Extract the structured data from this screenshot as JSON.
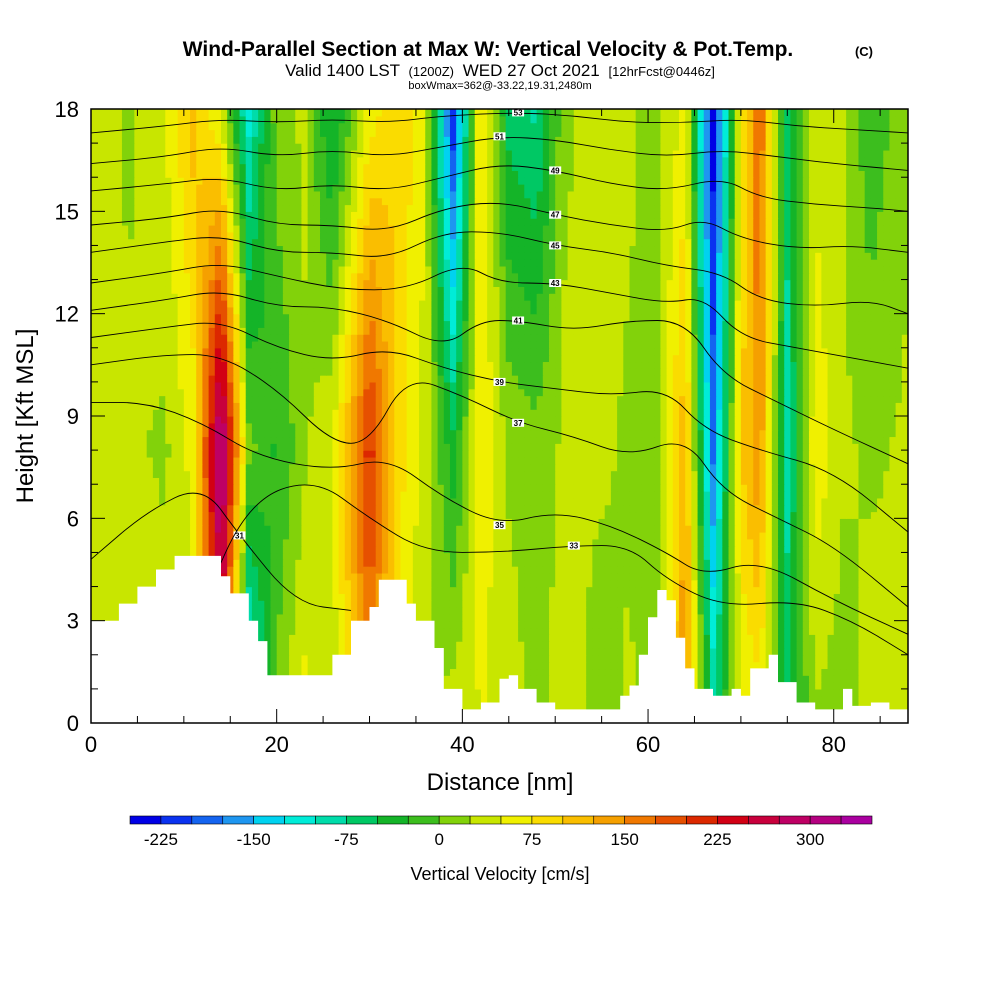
{
  "chart_data": {
    "type": "heatmap",
    "title": "Wind-Parallel Section at Max W: Vertical Velocity & Pot.Temp.",
    "copyright": "(C)",
    "subtitle_valid": "Valid 1400 LST",
    "subtitle_z": "(1200Z)",
    "subtitle_date": "WED 27 Oct 2021",
    "subtitle_fcst": "[12hrFcst@0446z]",
    "subtitle_box": "boxWmax=362@-33.22,19.31,2480m",
    "xlabel": "Distance [nm]",
    "ylabel": "Height [Kft MSL]",
    "xlim": [
      0,
      88
    ],
    "ylim": [
      0,
      18
    ],
    "x_ticks": [
      "0",
      "20",
      "40",
      "60",
      "80"
    ],
    "y_ticks": [
      "0",
      "3",
      "6",
      "9",
      "12",
      "15",
      "18"
    ],
    "colorbar": {
      "label": "Vertical Velocity [cm/s]",
      "min": -250,
      "max": 350,
      "step": 25,
      "tick_labels": [
        "-225",
        "-150",
        "-75",
        "0",
        "75",
        "150",
        "225",
        "300"
      ],
      "colors": [
        "#0000e6",
        "#0a32f0",
        "#1464f0",
        "#1e96f0",
        "#00d2f0",
        "#00ecd8",
        "#00dcaa",
        "#00c864",
        "#14b428",
        "#3cbe1e",
        "#82d20a",
        "#c8e600",
        "#f0f000",
        "#fadc00",
        "#fabe00",
        "#f5a000",
        "#f07800",
        "#e65000",
        "#dc2800",
        "#d20014",
        "#c8003c",
        "#be0064",
        "#b40080",
        "#aa00a0"
      ]
    },
    "terrain_kft": [
      [
        0,
        3.0
      ],
      [
        2,
        3.0
      ],
      [
        3,
        3.5
      ],
      [
        5,
        4.0
      ],
      [
        7,
        4.5
      ],
      [
        9,
        4.9
      ],
      [
        13,
        4.9
      ],
      [
        14,
        4.3
      ],
      [
        15,
        3.8
      ],
      [
        17,
        3.0
      ],
      [
        18,
        2.4
      ],
      [
        19,
        1.4
      ],
      [
        22,
        1.4
      ],
      [
        25,
        1.4
      ],
      [
        26,
        2.0
      ],
      [
        28,
        3.0
      ],
      [
        30,
        3.4
      ],
      [
        31,
        4.2
      ],
      [
        33,
        4.2
      ],
      [
        34,
        3.5
      ],
      [
        35,
        3.0
      ],
      [
        36,
        3.0
      ],
      [
        37,
        2.2
      ],
      [
        38,
        1.0
      ],
      [
        40,
        0.4
      ],
      [
        41,
        0.4
      ],
      [
        42,
        0.6
      ],
      [
        44,
        1.3
      ],
      [
        45,
        1.4
      ],
      [
        46,
        1.0
      ],
      [
        48,
        0.6
      ],
      [
        50,
        0.4
      ],
      [
        54,
        0.4
      ],
      [
        57,
        0.8
      ],
      [
        58,
        1.1
      ],
      [
        59,
        2.0
      ],
      [
        60,
        3.1
      ],
      [
        61,
        3.9
      ],
      [
        62,
        3.6
      ],
      [
        63,
        2.5
      ],
      [
        64,
        1.6
      ],
      [
        65,
        1.0
      ],
      [
        67,
        0.8
      ],
      [
        69,
        1.0
      ],
      [
        70,
        0.8
      ],
      [
        71,
        1.6
      ],
      [
        73,
        2.0
      ],
      [
        74,
        1.2
      ],
      [
        76,
        0.6
      ],
      [
        78,
        0.4
      ],
      [
        80,
        0.4
      ],
      [
        81,
        1.0
      ],
      [
        82,
        0.5
      ],
      [
        84,
        0.6
      ],
      [
        85,
        0.6
      ],
      [
        86,
        0.4
      ],
      [
        88,
        0.4
      ]
    ],
    "w_columns": [
      {
        "x": 0,
        "base": 35,
        "mid": 40,
        "top": 45
      },
      {
        "x": 4,
        "base": 60,
        "mid": 30,
        "top": 20
      },
      {
        "x": 8,
        "base": 40,
        "mid": 20,
        "top": 50
      },
      {
        "x": 11,
        "base": 35,
        "mid": 60,
        "top": 110
      },
      {
        "x": 14,
        "base": 240,
        "mid": 330,
        "top": 40
      },
      {
        "x": 17,
        "base": -160,
        "mid": 10,
        "top": -110
      },
      {
        "x": 20,
        "base": 10,
        "mid": -30,
        "top": 15
      },
      {
        "x": 23,
        "base": 60,
        "mid": 20,
        "top": 30
      },
      {
        "x": 26,
        "base": 30,
        "mid": 50,
        "top": -60
      },
      {
        "x": 30,
        "base": 150,
        "mid": 215,
        "top": 60
      },
      {
        "x": 33,
        "base": 60,
        "mid": 90,
        "top": 100
      },
      {
        "x": 36,
        "base": 20,
        "mid": 40,
        "top": 50
      },
      {
        "x": 39,
        "base": 40,
        "mid": -40,
        "top": -220
      },
      {
        "x": 42,
        "base": 50,
        "mid": 70,
        "top": 90
      },
      {
        "x": 45,
        "base": 40,
        "mid": 20,
        "top": -60
      },
      {
        "x": 48,
        "base": 15,
        "mid": 10,
        "top": -80
      },
      {
        "x": 51,
        "base": 40,
        "mid": 30,
        "top": 20
      },
      {
        "x": 55,
        "base": 10,
        "mid": 30,
        "top": 40
      },
      {
        "x": 58,
        "base": 30,
        "mid": 20,
        "top": 30
      },
      {
        "x": 61,
        "base": 5,
        "mid": 20,
        "top": 15
      },
      {
        "x": 64,
        "base": 160,
        "mid": 120,
        "top": 60
      },
      {
        "x": 67,
        "base": -70,
        "mid": -180,
        "top": -240
      },
      {
        "x": 70,
        "base": 40,
        "mid": 100,
        "top": 60
      },
      {
        "x": 72,
        "base": 60,
        "mid": 150,
        "top": 180
      },
      {
        "x": 75,
        "base": -50,
        "mid": -90,
        "top": -60
      },
      {
        "x": 78,
        "base": 20,
        "mid": 70,
        "top": 40
      },
      {
        "x": 81,
        "base": 10,
        "mid": 30,
        "top": 25
      },
      {
        "x": 84,
        "base": 40,
        "mid": 20,
        "top": -20
      },
      {
        "x": 88,
        "base": 25,
        "mid": 30,
        "top": 20
      }
    ],
    "theta_isentropes": [
      {
        "label": "31",
        "pts": [
          [
            0,
            4.8
          ],
          [
            6,
            6.2
          ],
          [
            12,
            7.0
          ],
          [
            16,
            5.5
          ],
          [
            22,
            3.5
          ],
          [
            28,
            3.3
          ]
        ]
      },
      {
        "label": "33",
        "pts": [
          [
            12,
            3.5
          ],
          [
            17,
            6.5
          ],
          [
            24,
            7.2
          ],
          [
            30,
            6.0
          ],
          [
            36,
            5.0
          ],
          [
            44,
            5.0
          ],
          [
            52,
            5.2
          ],
          [
            58,
            5.2
          ],
          [
            62,
            4.2
          ],
          [
            68,
            3.4
          ],
          [
            76,
            3.6
          ],
          [
            82,
            3.0
          ],
          [
            88,
            2.0
          ]
        ]
      },
      {
        "label": "35",
        "pts": [
          [
            0,
            9.4
          ],
          [
            6,
            9.4
          ],
          [
            12,
            8.8
          ],
          [
            18,
            7.8
          ],
          [
            26,
            7.4
          ],
          [
            32,
            7.8
          ],
          [
            38,
            6.6
          ],
          [
            44,
            5.8
          ],
          [
            50,
            6.2
          ],
          [
            56,
            5.8
          ],
          [
            62,
            5.0
          ],
          [
            66,
            4.3
          ],
          [
            72,
            4.8
          ],
          [
            80,
            3.6
          ],
          [
            88,
            2.6
          ]
        ]
      },
      {
        "label": "37",
        "pts": [
          [
            0,
            10.5
          ],
          [
            8,
            10.8
          ],
          [
            14,
            10.8
          ],
          [
            20,
            9.8
          ],
          [
            26,
            8.2
          ],
          [
            30,
            8.2
          ],
          [
            34,
            10.2
          ],
          [
            40,
            9.6
          ],
          [
            46,
            8.8
          ],
          [
            52,
            8.4
          ],
          [
            58,
            7.8
          ],
          [
            64,
            8.4
          ],
          [
            68,
            6.8
          ],
          [
            74,
            6.0
          ],
          [
            80,
            5.2
          ],
          [
            88,
            3.4
          ]
        ]
      },
      {
        "label": "39",
        "pts": [
          [
            0,
            11.3
          ],
          [
            8,
            11.6
          ],
          [
            14,
            11.8
          ],
          [
            20,
            11.0
          ],
          [
            26,
            10.6
          ],
          [
            32,
            11.0
          ],
          [
            38,
            10.4
          ],
          [
            44,
            10.0
          ],
          [
            50,
            9.8
          ],
          [
            56,
            9.6
          ],
          [
            62,
            9.8
          ],
          [
            66,
            8.6
          ],
          [
            72,
            8.0
          ],
          [
            80,
            7.4
          ],
          [
            88,
            5.6
          ]
        ]
      },
      {
        "label": "41",
        "pts": [
          [
            0,
            12.1
          ],
          [
            8,
            12.4
          ],
          [
            14,
            12.7
          ],
          [
            20,
            12.2
          ],
          [
            26,
            12.2
          ],
          [
            32,
            11.8
          ],
          [
            38,
            11.0
          ],
          [
            42,
            11.8
          ],
          [
            46,
            11.8
          ],
          [
            52,
            11.5
          ],
          [
            58,
            11.8
          ],
          [
            64,
            11.8
          ],
          [
            68,
            10.2
          ],
          [
            74,
            9.4
          ],
          [
            80,
            8.6
          ],
          [
            88,
            7.6
          ]
        ]
      },
      {
        "label": "43",
        "pts": [
          [
            0,
            12.9
          ],
          [
            8,
            13.2
          ],
          [
            14,
            13.5
          ],
          [
            20,
            13.1
          ],
          [
            27,
            12.7
          ],
          [
            34,
            12.7
          ],
          [
            40,
            13.5
          ],
          [
            44,
            12.9
          ],
          [
            50,
            12.9
          ],
          [
            56,
            12.6
          ],
          [
            62,
            12.3
          ],
          [
            66,
            12.5
          ],
          [
            70,
            11.3
          ],
          [
            76,
            11.0
          ],
          [
            82,
            10.7
          ],
          [
            88,
            10.4
          ]
        ]
      },
      {
        "label": "45",
        "pts": [
          [
            0,
            13.8
          ],
          [
            8,
            14.1
          ],
          [
            14,
            14.3
          ],
          [
            20,
            13.8
          ],
          [
            26,
            13.8
          ],
          [
            32,
            13.6
          ],
          [
            38,
            14.4
          ],
          [
            44,
            14.4
          ],
          [
            50,
            14.0
          ],
          [
            56,
            13.8
          ],
          [
            62,
            13.4
          ],
          [
            68,
            13.2
          ],
          [
            72,
            12.4
          ],
          [
            78,
            12.2
          ],
          [
            84,
            12.4
          ],
          [
            88,
            12.0
          ]
        ]
      },
      {
        "label": "47",
        "pts": [
          [
            0,
            14.6
          ],
          [
            8,
            14.8
          ],
          [
            14,
            15.1
          ],
          [
            20,
            14.6
          ],
          [
            26,
            14.6
          ],
          [
            32,
            14.4
          ],
          [
            38,
            15.1
          ],
          [
            44,
            15.3
          ],
          [
            50,
            14.9
          ],
          [
            56,
            14.6
          ],
          [
            62,
            14.4
          ],
          [
            66,
            14.8
          ],
          [
            70,
            14.2
          ],
          [
            76,
            13.9
          ],
          [
            82,
            14.0
          ],
          [
            88,
            13.8
          ]
        ]
      },
      {
        "label": "49",
        "pts": [
          [
            0,
            15.6
          ],
          [
            8,
            15.8
          ],
          [
            14,
            16.0
          ],
          [
            20,
            15.6
          ],
          [
            26,
            15.8
          ],
          [
            32,
            15.6
          ],
          [
            38,
            16.0
          ],
          [
            44,
            16.4
          ],
          [
            50,
            16.2
          ],
          [
            56,
            15.8
          ],
          [
            62,
            15.6
          ],
          [
            68,
            16.0
          ],
          [
            72,
            15.4
          ],
          [
            78,
            15.2
          ],
          [
            84,
            15.1
          ],
          [
            88,
            15.0
          ]
        ]
      },
      {
        "label": "51",
        "pts": [
          [
            0,
            16.4
          ],
          [
            8,
            16.6
          ],
          [
            14,
            16.9
          ],
          [
            20,
            16.6
          ],
          [
            26,
            16.8
          ],
          [
            32,
            16.6
          ],
          [
            38,
            16.9
          ],
          [
            44,
            17.2
          ],
          [
            50,
            17.1
          ],
          [
            56,
            16.8
          ],
          [
            62,
            16.6
          ],
          [
            68,
            16.8
          ],
          [
            74,
            16.6
          ],
          [
            80,
            16.4
          ],
          [
            88,
            16.2
          ]
        ]
      },
      {
        "label": "53",
        "pts": [
          [
            0,
            17.3
          ],
          [
            8,
            17.5
          ],
          [
            14,
            17.7
          ],
          [
            20,
            17.6
          ],
          [
            26,
            17.7
          ],
          [
            32,
            17.6
          ],
          [
            38,
            17.8
          ],
          [
            46,
            17.9
          ],
          [
            52,
            17.8
          ],
          [
            58,
            17.6
          ],
          [
            64,
            17.6
          ],
          [
            70,
            17.7
          ],
          [
            76,
            17.5
          ],
          [
            82,
            17.4
          ],
          [
            88,
            17.3
          ]
        ]
      }
    ]
  }
}
